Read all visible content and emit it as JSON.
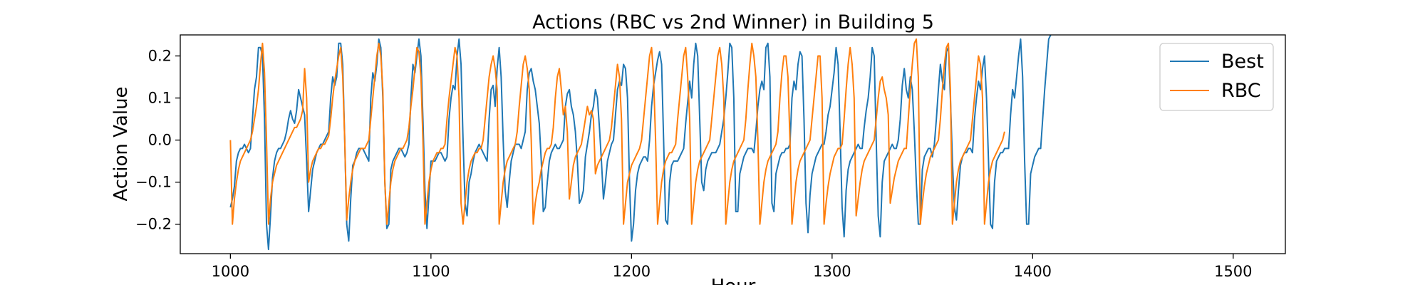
{
  "chart_data": {
    "type": "line",
    "title": "Actions (RBC vs 2nd Winner) in Building 5",
    "xlabel": "Hour",
    "ylabel": "Action Value",
    "xlim": [
      975,
      1526
    ],
    "ylim": [
      -0.27,
      0.25
    ],
    "xticks": [
      1000,
      1100,
      1200,
      1300,
      1400,
      1500
    ],
    "yticks": [
      -0.2,
      -0.1,
      0.0,
      0.1,
      0.2
    ],
    "xtick_labels": [
      "1000",
      "1100",
      "1200",
      "1300",
      "1400",
      "1500"
    ],
    "ytick_labels": [
      "−0.2",
      "−0.1",
      "0.0",
      "0.1",
      "0.2"
    ],
    "grid": false,
    "legend_position": "top-right",
    "series": [
      {
        "name": "Best",
        "color": "#1f77b4",
        "x_start": 1000,
        "x_step": 1,
        "values": [
          -0.16,
          -0.14,
          -0.11,
          -0.05,
          -0.03,
          -0.02,
          -0.02,
          -0.01,
          -0.02,
          -0.03,
          -0.02,
          0.05,
          0.12,
          0.15,
          0.22,
          0.22,
          0.2,
          0.05,
          -0.2,
          -0.26,
          -0.18,
          -0.09,
          -0.05,
          -0.03,
          -0.02,
          -0.02,
          -0.01,
          0.0,
          0.02,
          0.05,
          0.07,
          0.05,
          0.04,
          0.07,
          0.12,
          0.1,
          0.08,
          0.06,
          -0.05,
          -0.17,
          -0.12,
          -0.07,
          -0.05,
          -0.03,
          -0.02,
          -0.01,
          -0.01,
          0.0,
          0.01,
          0.02,
          0.1,
          0.15,
          0.13,
          0.15,
          0.23,
          0.23,
          0.18,
          0.0,
          -0.2,
          -0.24,
          -0.14,
          -0.06,
          -0.05,
          -0.03,
          -0.02,
          -0.02,
          -0.02,
          -0.03,
          -0.04,
          -0.05,
          0.1,
          0.16,
          0.14,
          0.18,
          0.24,
          0.22,
          0.1,
          -0.1,
          -0.21,
          -0.2,
          -0.07,
          -0.05,
          -0.04,
          -0.03,
          -0.02,
          -0.02,
          -0.03,
          -0.04,
          -0.03,
          -0.01,
          0.1,
          0.18,
          0.16,
          0.2,
          0.24,
          0.2,
          0.05,
          -0.12,
          -0.21,
          -0.13,
          -0.05,
          -0.05,
          -0.05,
          -0.04,
          -0.03,
          -0.03,
          -0.04,
          -0.05,
          -0.04,
          0.05,
          0.1,
          0.13,
          0.12,
          0.2,
          0.24,
          0.18,
          0.0,
          -0.15,
          -0.18,
          -0.1,
          -0.08,
          -0.05,
          -0.03,
          -0.02,
          -0.01,
          -0.02,
          -0.03,
          -0.04,
          -0.05,
          0.05,
          0.12,
          0.13,
          0.08,
          0.17,
          0.22,
          0.15,
          0.0,
          -0.12,
          -0.16,
          -0.1,
          -0.05,
          -0.03,
          -0.01,
          -0.01,
          -0.01,
          -0.02,
          0.0,
          0.02,
          0.12,
          0.16,
          0.17,
          0.14,
          0.12,
          0.08,
          0.04,
          -0.05,
          -0.17,
          -0.16,
          -0.1,
          -0.05,
          -0.03,
          -0.02,
          -0.01,
          -0.02,
          -0.02,
          -0.01,
          0.0,
          0.08,
          0.11,
          0.12,
          0.08,
          0.06,
          0.02,
          -0.05,
          -0.15,
          -0.14,
          -0.12,
          -0.04,
          -0.01,
          0.02,
          0.06,
          0.08,
          0.12,
          0.1,
          0.03,
          -0.05,
          -0.14,
          -0.1,
          -0.05,
          -0.03,
          -0.01,
          0.0,
          0.06,
          0.12,
          0.14,
          0.13,
          0.18,
          0.17,
          0.1,
          -0.1,
          -0.24,
          -0.2,
          -0.12,
          -0.08,
          -0.06,
          -0.05,
          -0.04,
          -0.04,
          -0.05,
          0.0,
          0.08,
          0.13,
          0.16,
          0.19,
          0.21,
          0.18,
          0.0,
          -0.19,
          -0.2,
          -0.1,
          -0.06,
          -0.05,
          -0.05,
          -0.05,
          -0.04,
          -0.03,
          -0.02,
          0.04,
          0.09,
          0.14,
          0.1,
          0.18,
          0.23,
          0.2,
          0.05,
          -0.1,
          -0.12,
          -0.07,
          -0.05,
          -0.04,
          -0.03,
          -0.03,
          -0.03,
          -0.02,
          -0.01,
          0.02,
          0.05,
          0.1,
          0.16,
          0.23,
          0.22,
          0.1,
          -0.17,
          -0.17,
          -0.08,
          -0.06,
          -0.04,
          -0.03,
          -0.02,
          -0.02,
          -0.02,
          -0.03,
          0.02,
          0.08,
          0.12,
          0.14,
          0.12,
          0.22,
          0.23,
          0.15,
          -0.15,
          -0.17,
          -0.08,
          -0.06,
          -0.04,
          -0.03,
          -0.03,
          -0.02,
          -0.02,
          -0.01,
          0.1,
          0.14,
          0.12,
          0.18,
          0.21,
          0.2,
          0.05,
          -0.15,
          -0.22,
          -0.13,
          -0.08,
          -0.06,
          -0.04,
          -0.03,
          -0.02,
          -0.01,
          -0.01,
          0.02,
          0.06,
          0.08,
          0.12,
          0.16,
          0.22,
          0.18,
          0.02,
          -0.16,
          -0.23,
          -0.12,
          -0.07,
          -0.05,
          -0.04,
          -0.03,
          -0.02,
          -0.01,
          -0.02,
          -0.02,
          0.03,
          0.07,
          0.1,
          0.15,
          0.22,
          0.2,
          0.0,
          -0.18,
          -0.23,
          -0.1,
          -0.05,
          -0.04,
          -0.03,
          -0.02,
          -0.01,
          -0.02,
          -0.02,
          0.0,
          0.05,
          0.13,
          0.17,
          0.12,
          0.1,
          0.15,
          0.12,
          0.02,
          -0.1,
          -0.2,
          -0.2,
          -0.07,
          -0.04,
          -0.03,
          -0.02,
          -0.02,
          -0.04,
          -0.01,
          0.05,
          0.12,
          0.18,
          0.14,
          0.12,
          0.21,
          0.22,
          0.1,
          -0.05,
          -0.16,
          -0.19,
          -0.12,
          -0.06,
          -0.04,
          -0.03,
          -0.03,
          -0.02,
          -0.02,
          -0.03,
          0.05,
          0.1,
          0.14,
          0.12,
          0.17,
          0.2,
          0.1,
          -0.05,
          -0.2,
          -0.21,
          -0.1,
          -0.05,
          -0.04,
          -0.03,
          -0.03,
          -0.02,
          -0.02,
          -0.02,
          0.06,
          0.12,
          0.1,
          0.15,
          0.2,
          0.24,
          0.15,
          -0.05,
          -0.2,
          -0.2,
          -0.08,
          -0.06,
          -0.04,
          -0.03,
          -0.02,
          -0.02,
          0.05,
          0.12,
          0.18,
          0.24,
          0.25
        ]
      },
      {
        "name": "RBC",
        "color": "#ff7f0e",
        "x_start": 1000,
        "x_step": 1,
        "values": [
          0.0,
          -0.2,
          -0.14,
          -0.1,
          -0.07,
          -0.05,
          -0.04,
          -0.03,
          -0.02,
          -0.01,
          0.0,
          0.02,
          0.05,
          0.08,
          0.12,
          0.18,
          0.23,
          0.16,
          0.0,
          -0.2,
          -0.14,
          -0.1,
          -0.08,
          -0.06,
          -0.05,
          -0.04,
          -0.03,
          -0.02,
          -0.01,
          0.0,
          0.01,
          0.02,
          0.03,
          0.03,
          0.04,
          0.05,
          0.07,
          0.17,
          0.1,
          -0.1,
          -0.07,
          -0.05,
          -0.04,
          -0.03,
          -0.02,
          -0.02,
          -0.01,
          -0.01,
          0.0,
          0.01,
          0.05,
          0.1,
          0.14,
          0.17,
          0.2,
          0.22,
          0.15,
          0.0,
          -0.19,
          -0.14,
          -0.1,
          -0.07,
          -0.05,
          -0.04,
          -0.03,
          -0.02,
          -0.02,
          -0.02,
          -0.01,
          0.0,
          0.05,
          0.1,
          0.15,
          0.2,
          0.23,
          0.2,
          0.12,
          -0.1,
          -0.2,
          -0.15,
          -0.1,
          -0.07,
          -0.05,
          -0.04,
          -0.03,
          -0.02,
          -0.02,
          -0.01,
          0.0,
          0.03,
          0.08,
          0.12,
          0.17,
          0.22,
          0.21,
          0.15,
          0.0,
          -0.2,
          -0.15,
          -0.1,
          -0.07,
          -0.05,
          -0.04,
          -0.03,
          -0.03,
          -0.02,
          -0.02,
          -0.01,
          0.05,
          0.1,
          0.14,
          0.18,
          0.22,
          0.2,
          0.1,
          -0.15,
          -0.2,
          -0.15,
          -0.1,
          -0.07,
          -0.05,
          -0.04,
          -0.03,
          -0.03,
          -0.02,
          -0.02,
          0.0,
          0.05,
          0.1,
          0.15,
          0.18,
          0.2,
          0.17,
          0.12,
          -0.2,
          -0.15,
          -0.1,
          -0.07,
          -0.05,
          -0.04,
          -0.03,
          -0.02,
          -0.01,
          0.02,
          0.08,
          0.13,
          0.18,
          0.2,
          0.17,
          0.12,
          0.0,
          -0.2,
          -0.15,
          -0.12,
          -0.1,
          -0.07,
          -0.05,
          -0.03,
          -0.02,
          -0.02,
          -0.01,
          0.03,
          0.1,
          0.15,
          0.17,
          0.12,
          0.06,
          0.08,
          0.02,
          -0.14,
          -0.1,
          -0.06,
          -0.04,
          -0.03,
          -0.02,
          -0.01,
          0.02,
          0.05,
          0.08,
          0.06,
          0.07,
          0.05,
          -0.08,
          -0.06,
          -0.05,
          -0.04,
          -0.03,
          -0.02,
          -0.01,
          0.0,
          0.03,
          0.08,
          0.13,
          0.18,
          0.15,
          0.05,
          -0.2,
          -0.15,
          -0.1,
          -0.08,
          -0.06,
          -0.05,
          -0.04,
          -0.03,
          -0.02,
          0.0,
          0.05,
          0.1,
          0.15,
          0.2,
          0.22,
          0.15,
          0.0,
          -0.2,
          -0.15,
          -0.1,
          -0.07,
          -0.05,
          -0.04,
          -0.03,
          -0.03,
          -0.02,
          -0.01,
          0.05,
          0.1,
          0.15,
          0.2,
          0.22,
          0.15,
          0.05,
          -0.2,
          -0.15,
          -0.1,
          -0.07,
          -0.05,
          -0.04,
          -0.03,
          -0.02,
          -0.01,
          0.0,
          0.05,
          0.1,
          0.15,
          0.2,
          0.22,
          0.18,
          0.1,
          -0.2,
          -0.15,
          -0.1,
          -0.07,
          -0.05,
          -0.04,
          -0.03,
          -0.02,
          -0.01,
          0.0,
          0.05,
          0.12,
          0.18,
          0.23,
          0.2,
          0.15,
          0.0,
          -0.2,
          -0.15,
          -0.1,
          -0.07,
          -0.05,
          -0.04,
          -0.03,
          -0.02,
          -0.01,
          0.02,
          0.1,
          0.16,
          0.2,
          0.2,
          0.15,
          0.0,
          -0.2,
          -0.15,
          -0.1,
          -0.07,
          -0.05,
          -0.04,
          -0.03,
          -0.02,
          -0.01,
          0.0,
          0.05,
          0.1,
          0.15,
          0.2,
          0.2,
          0.1,
          -0.2,
          -0.15,
          -0.11,
          -0.08,
          -0.06,
          -0.04,
          -0.03,
          -0.02,
          -0.02,
          -0.01,
          0.05,
          0.12,
          0.18,
          0.22,
          0.18,
          0.1,
          -0.18,
          -0.14,
          -0.1,
          -0.07,
          -0.05,
          -0.04,
          -0.03,
          -0.02,
          -0.01,
          0.0,
          0.05,
          0.1,
          0.14,
          0.15,
          0.12,
          0.1,
          0.06,
          -0.15,
          -0.12,
          -0.09,
          -0.07,
          -0.05,
          -0.04,
          -0.03,
          -0.02,
          -0.02,
          0.05,
          0.12,
          0.18,
          0.23,
          0.24,
          0.15,
          -0.2,
          -0.15,
          -0.11,
          -0.08,
          -0.06,
          -0.04,
          -0.03,
          -0.02,
          -0.01,
          0.0,
          0.05,
          0.12,
          0.18,
          0.22,
          0.23,
          0.12,
          -0.2,
          -0.15,
          -0.1,
          -0.07,
          -0.05,
          -0.04,
          -0.03,
          -0.02,
          -0.01,
          0.0,
          0.05,
          0.1,
          0.15,
          0.2,
          0.18,
          0.1,
          -0.2,
          -0.15,
          -0.1,
          -0.07,
          -0.05,
          -0.04,
          -0.03,
          -0.02,
          -0.01,
          0.0,
          0.02
        ]
      }
    ]
  }
}
